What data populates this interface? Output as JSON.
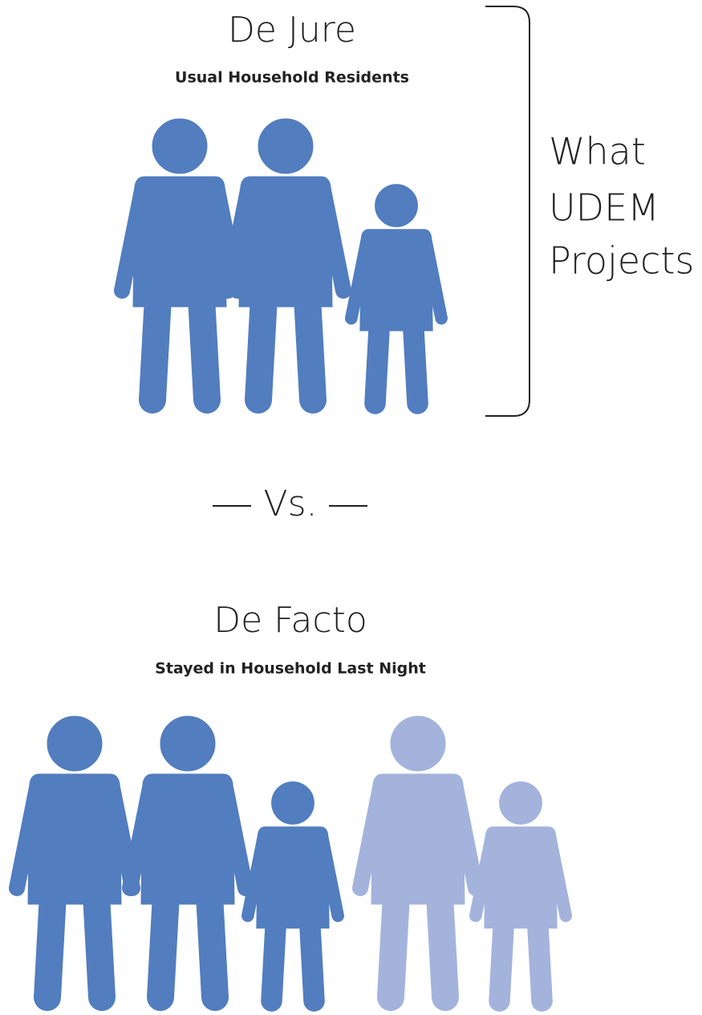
{
  "top": {
    "title": "De Jure",
    "subtitle": "Usual Household Residents"
  },
  "bracket_label": [
    "What",
    "UDEM",
    "Projects"
  ],
  "separator": "Vs.",
  "bottom": {
    "title": "De Facto",
    "subtitle": "Stayed in Household Last Night"
  }
}
